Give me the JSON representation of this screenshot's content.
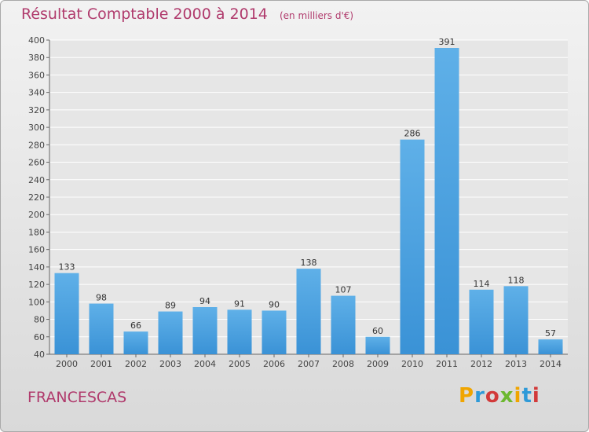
{
  "title": "Résultat Comptable 2000 à 2014",
  "subtitle": "(en milliers d'€)",
  "location": "FRANCESCAS",
  "logo": {
    "letters": [
      "P",
      "r",
      "o",
      "x",
      "i",
      "t",
      "i"
    ],
    "colors": [
      "#f0a500",
      "#2e9ad8",
      "#d23a3a",
      "#6cb82f"
    ]
  },
  "colors": {
    "bar": "#3a92d6",
    "bar_light": "#5fb0e8",
    "title": "#b03a6c",
    "grid": "#ffffff"
  },
  "chart_data": {
    "type": "bar",
    "categories": [
      "2000",
      "2001",
      "2002",
      "2003",
      "2004",
      "2005",
      "2006",
      "2007",
      "2008",
      "2009",
      "2010",
      "2011",
      "2012",
      "2013",
      "2014"
    ],
    "values": [
      133,
      98,
      66,
      89,
      94,
      91,
      90,
      138,
      107,
      60,
      286,
      391,
      114,
      118,
      57
    ],
    "ylim": [
      40,
      400
    ],
    "yticks": [
      40,
      60,
      80,
      100,
      120,
      140,
      160,
      180,
      200,
      220,
      240,
      260,
      280,
      300,
      320,
      340,
      360,
      380,
      400
    ],
    "grid": true
  }
}
